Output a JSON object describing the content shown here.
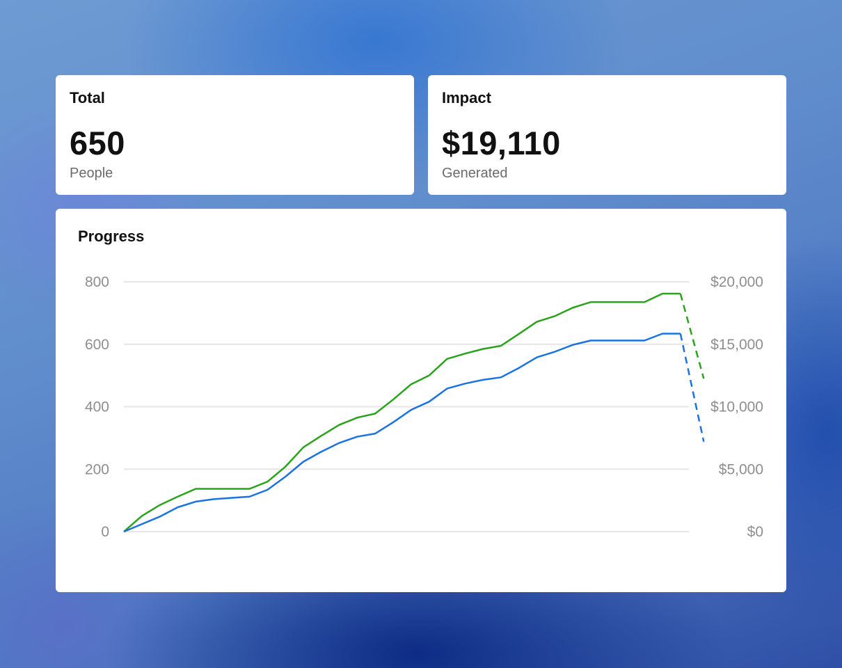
{
  "cards": {
    "total": {
      "title": "Total",
      "value": "650",
      "subtitle": "People"
    },
    "impact": {
      "title": "Impact",
      "value": "$19,110",
      "subtitle": "Generated"
    }
  },
  "progress": {
    "title": "Progress"
  },
  "chart_data": {
    "type": "line",
    "grid": true,
    "legend": "none",
    "left_axis": {
      "ticks": [
        "0",
        "200",
        "400",
        "600",
        "800"
      ],
      "ylim": [
        0,
        800
      ]
    },
    "right_axis": {
      "ticks": [
        "$0",
        "$5,000",
        "$10,000",
        "$15,000",
        "$20,000"
      ],
      "ylim": [
        0,
        20000
      ]
    },
    "x": [
      0,
      1,
      2,
      3,
      4,
      5,
      6,
      7,
      8,
      9,
      10,
      11,
      12,
      13,
      14,
      15,
      16,
      17,
      18,
      19,
      20,
      21,
      22,
      23,
      24,
      25,
      26,
      27,
      28,
      29,
      30,
      31
    ],
    "series": [
      {
        "axis": "left",
        "color": "#2aa31c",
        "values": [
          0,
          50,
          85,
          112,
          137,
          137,
          137,
          137,
          160,
          208,
          270,
          307,
          342,
          365,
          378,
          423,
          472,
          500,
          553,
          570,
          585,
          595,
          633,
          672,
          690,
          717,
          735,
          735,
          735,
          735,
          762,
          762
        ],
        "projected_values": [
          762,
          490
        ]
      },
      {
        "axis": "right",
        "color": "#1a73e0",
        "values": [
          0,
          600,
          1200,
          1950,
          2400,
          2600,
          2700,
          2800,
          3350,
          4400,
          5600,
          6400,
          7100,
          7600,
          7850,
          8750,
          9750,
          10400,
          11450,
          11850,
          12150,
          12350,
          13100,
          13950,
          14400,
          14950,
          15300,
          15300,
          15300,
          15300,
          15850,
          15850
        ],
        "projected_values": [
          15850,
          7200
        ]
      }
    ]
  }
}
